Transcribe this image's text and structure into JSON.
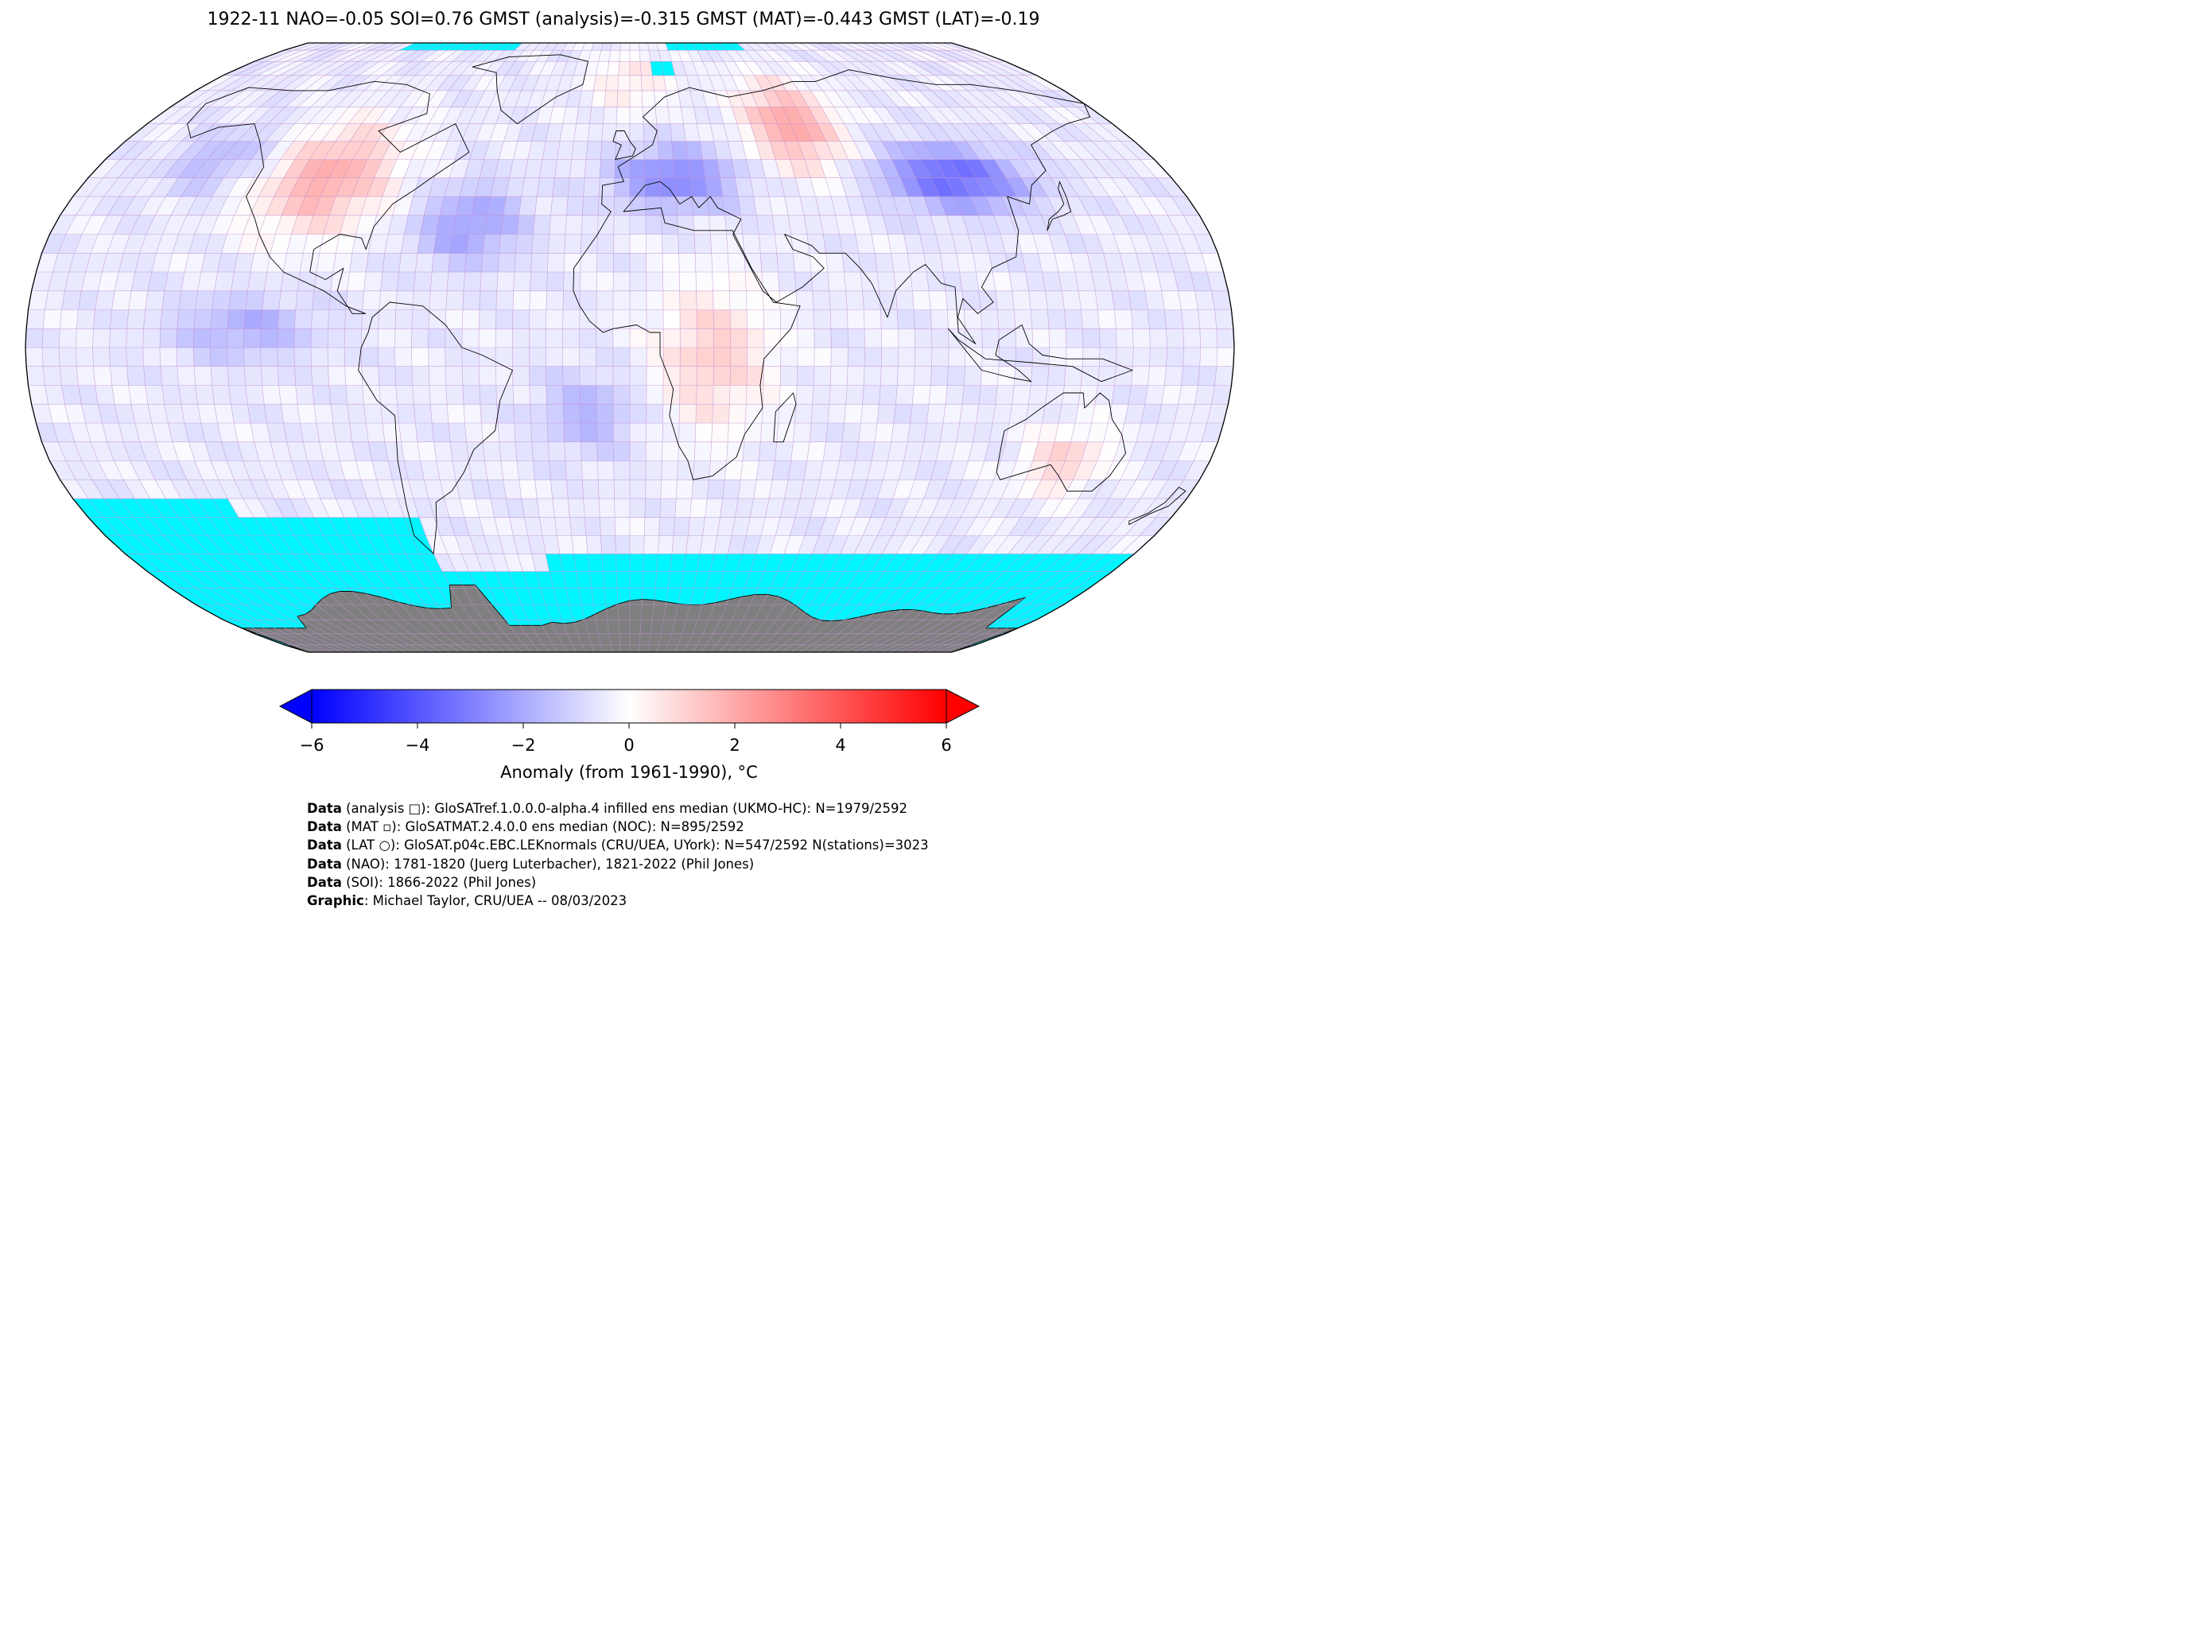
{
  "title": "1922-11 NAO=-0.05 SOI=0.76 GMST (analysis)=-0.315 GMST (MAT)=-0.443 GMST (LAT)=-0.19",
  "map": {
    "projection": "Robinson",
    "grid_resolution_deg": 5,
    "colors": {
      "missing_data": "#00f5ff",
      "land_mask": "#7f7f7f",
      "grid_lines": "#c090d0",
      "coastline": "#000000",
      "border": "#000000"
    },
    "anomaly_regions": [
      {
        "name": "western-north-america-warm",
        "lon": [
          -125,
          -75
        ],
        "lat": [
          28,
          62
        ],
        "anomaly": 2.4
      },
      {
        "name": "pacific-northwest-cool",
        "lon": [
          -160,
          -120
        ],
        "lat": [
          40,
          60
        ],
        "anomaly": -1.2
      },
      {
        "name": "north-atlantic-cool",
        "lon": [
          -70,
          -30
        ],
        "lat": [
          20,
          45
        ],
        "anomaly": -1.8
      },
      {
        "name": "europe-cool",
        "lon": [
          -10,
          40
        ],
        "lat": [
          35,
          55
        ],
        "anomaly": -2.4
      },
      {
        "name": "russia-warm",
        "lon": [
          40,
          80
        ],
        "lat": [
          45,
          75
        ],
        "anomaly": 2.6
      },
      {
        "name": "central-asia-cool",
        "lon": [
          80,
          135
        ],
        "lat": [
          35,
          55
        ],
        "anomaly": -3.2
      },
      {
        "name": "africa-warm",
        "lon": [
          5,
          45
        ],
        "lat": [
          -25,
          20
        ],
        "anomaly": 1.6
      },
      {
        "name": "eastern-pacific-cool",
        "lon": [
          -140,
          -90
        ],
        "lat": [
          -5,
          15
        ],
        "anomaly": -1.4
      },
      {
        "name": "south-atlantic-cool",
        "lon": [
          -30,
          5
        ],
        "lat": [
          -30,
          -5
        ],
        "anomaly": -1.3
      },
      {
        "name": "australia-warm",
        "lon": [
          120,
          150
        ],
        "lat": [
          -40,
          -20
        ],
        "anomaly": 1.5
      },
      {
        "name": "arctic-atlantic-warm",
        "lon": [
          -20,
          20
        ],
        "lat": [
          62,
          85
        ],
        "anomaly": 1.0
      }
    ],
    "missing_regions": [
      {
        "lon": [
          -180,
          180
        ],
        "lat": [
          -90,
          -60
        ]
      },
      {
        "lon": [
          -180,
          -70
        ],
        "lat": [
          -60,
          -45
        ]
      },
      {
        "lon": [
          -180,
          -130
        ],
        "lat": [
          -60,
          -40
        ]
      },
      {
        "lon": [
          -30,
          180
        ],
        "lat": [
          -65,
          -55
        ]
      },
      {
        "lon": [
          -120,
          -60
        ],
        "lat": [
          85,
          90
        ]
      },
      {
        "lon": [
          20,
          60
        ],
        "lat": [
          85,
          90
        ]
      },
      {
        "lon": [
          10,
          20
        ],
        "lat": [
          75,
          80
        ]
      }
    ]
  },
  "colorbar": {
    "label": "Anomaly (from 1961-1990), °C",
    "ticks": [
      "−6",
      "−4",
      "−2",
      "0",
      "2",
      "4",
      "6"
    ],
    "min": -6,
    "max": 6,
    "colors": {
      "cold": "#0000ff",
      "neutral": "#ffffff",
      "warm": "#ff0000"
    }
  },
  "credits": [
    {
      "label": "Data",
      "text": " (analysis □): GloSATref.1.0.0.0-alpha.4 infilled ens median (UKMO-HC): N=1979/2592"
    },
    {
      "label": "Data",
      "text": " (MAT ▫): GloSATMAT.2.4.0.0 ens median (NOC): N=895/2592"
    },
    {
      "label": "Data",
      "text": " (LAT ○): GloSAT.p04c.EBC.LEKnormals (CRU/UEA, UYork): N=547/2592 N(stations)=3023"
    },
    {
      "label": "Data",
      "text": " (NAO): 1781-1820 (Juerg Luterbacher), 1821-2022 (Phil Jones)"
    },
    {
      "label": "Data",
      "text": " (SOI): 1866-2022 (Phil Jones)"
    },
    {
      "label": "Graphic",
      "text": ": Michael Taylor, CRU/UEA -- 08/03/2023"
    }
  ]
}
